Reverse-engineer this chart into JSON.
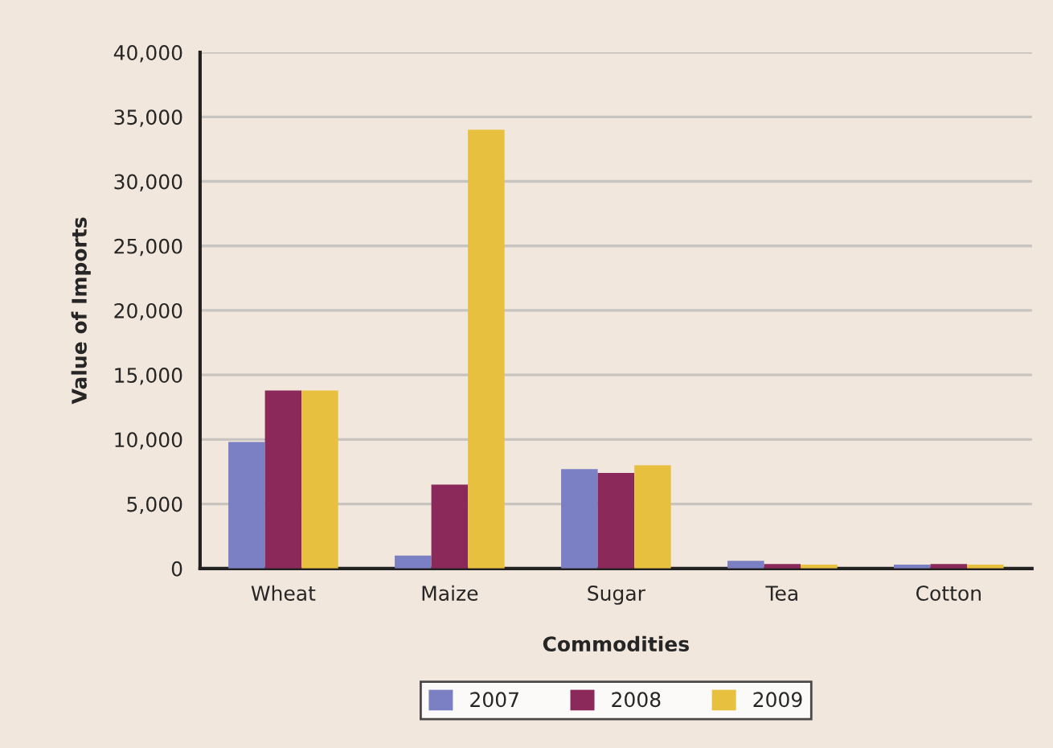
{
  "chart_data": {
    "type": "bar",
    "xlabel": "Commodities",
    "ylabel": "Value of Imports",
    "categories": [
      "Wheat",
      "Maize",
      "Sugar",
      "Tea",
      "Cotton"
    ],
    "series": [
      {
        "name": "2007",
        "color": "#7b7fc4",
        "values": [
          9800,
          1000,
          7700,
          600,
          300
        ]
      },
      {
        "name": "2008",
        "color": "#8b2a5a",
        "values": [
          13800,
          6500,
          7400,
          350,
          350
        ]
      },
      {
        "name": "2009",
        "color": "#e8c040",
        "values": [
          13800,
          34000,
          8000,
          300,
          300
        ]
      }
    ],
    "ylim": [
      0,
      40000
    ],
    "yticks": [
      {
        "value": 0,
        "label": "0"
      },
      {
        "value": 5000,
        "label": "5,000"
      },
      {
        "value": 10000,
        "label": "10,000"
      },
      {
        "value": 15000,
        "label": "15,000"
      },
      {
        "value": 20000,
        "label": "20,000"
      },
      {
        "value": 25000,
        "label": "25,000"
      },
      {
        "value": 30000,
        "label": "30,000"
      },
      {
        "value": 35000,
        "label": "35,000"
      },
      {
        "value": 40000,
        "label": "40,000"
      }
    ],
    "grid": "y",
    "legend": "bottom"
  }
}
